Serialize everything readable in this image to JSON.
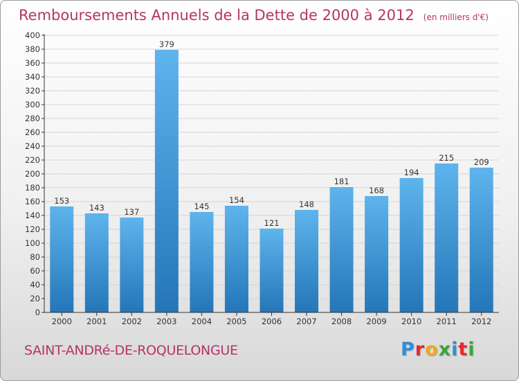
{
  "header": {
    "title": "Remboursements Annuels de la Dette de 2000 à 2012",
    "unit": "(en milliers d'€)"
  },
  "footer": {
    "commune": "SAINT-ANDRé-DE-ROQUELONGUE",
    "logo_letters": [
      "P",
      "r",
      "o",
      "x",
      "i",
      "t",
      "i"
    ],
    "logo_colors": [
      "#2e8fd6",
      "#e8262d",
      "#f4a71c",
      "#3aa53a",
      "#2e8fd6",
      "#e8262d",
      "#3aa53a"
    ]
  },
  "colors": {
    "bar_top": "#5eb4ec",
    "bar_bottom": "#2476b8",
    "accent": "#b5336a",
    "axis": "#333333",
    "grid": "#d4d4d4"
  },
  "chart_data": {
    "type": "bar",
    "title": "Remboursements Annuels de la Dette de 2000 à 2012",
    "categories": [
      "2000",
      "2001",
      "2002",
      "2003",
      "2004",
      "2005",
      "2006",
      "2007",
      "2008",
      "2009",
      "2010",
      "2011",
      "2012"
    ],
    "values": [
      153,
      143,
      137,
      379,
      145,
      154,
      121,
      148,
      181,
      168,
      194,
      215,
      209
    ],
    "xlabel": "",
    "ylabel": "",
    "ylim": [
      0,
      400
    ],
    "ytick_step": 20,
    "grid": true,
    "legend": "none"
  }
}
